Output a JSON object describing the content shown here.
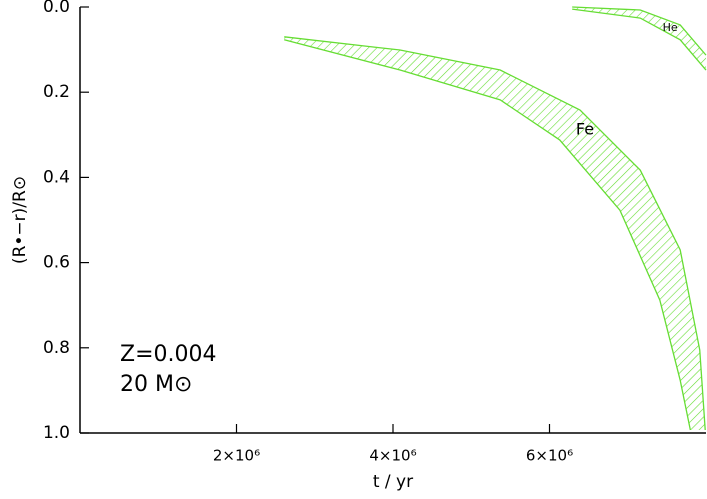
{
  "chart_data": {
    "type": "band",
    "x_label": "t / yr",
    "y_label": "(R•−r)/R⊙",
    "annotations": [
      "Z=0.004",
      "20 M⊙"
    ],
    "xlim": [
      0,
      8000000
    ],
    "ylim": [
      1.0,
      0.0
    ],
    "xticks": [
      {
        "value": 2000000,
        "label": "2×10⁶"
      },
      {
        "value": 4000000,
        "label": "4×10⁶"
      },
      {
        "value": 6000000,
        "label": "6×10⁶"
      }
    ],
    "yticks": [
      {
        "value": 0,
        "label": "0.0"
      },
      0.2,
      0.4,
      0.6,
      0.8,
      {
        "value": 1,
        "label": "1.0"
      }
    ],
    "regions": [
      {
        "name": "Fe",
        "color": "#66dd33",
        "x_top": [
          2610000,
          4090000,
          5370000,
          6390000,
          7160000,
          7670000,
          7920000,
          7990000
        ],
        "top": [
          0.07,
          0.101,
          0.148,
          0.242,
          0.383,
          0.57,
          0.805,
          0.993
        ],
        "x_bottom": [
          2610000,
          4090000,
          5370000,
          6130000,
          6900000,
          7410000,
          7670000,
          7800000
        ],
        "bottom": [
          0.077,
          0.148,
          0.218,
          0.312,
          0.477,
          0.688,
          0.876,
          0.993
        ]
      },
      {
        "name": "He",
        "color": "#66dd33",
        "x_top": [
          6290000,
          7160000,
          7670000,
          8000000
        ],
        "top": [
          0.0,
          0.007,
          0.042,
          0.113
        ],
        "x_bottom": [
          6290000,
          7160000,
          7670000,
          8000000
        ],
        "bottom": [
          0.005,
          0.026,
          0.077,
          0.148
        ]
      }
    ]
  }
}
